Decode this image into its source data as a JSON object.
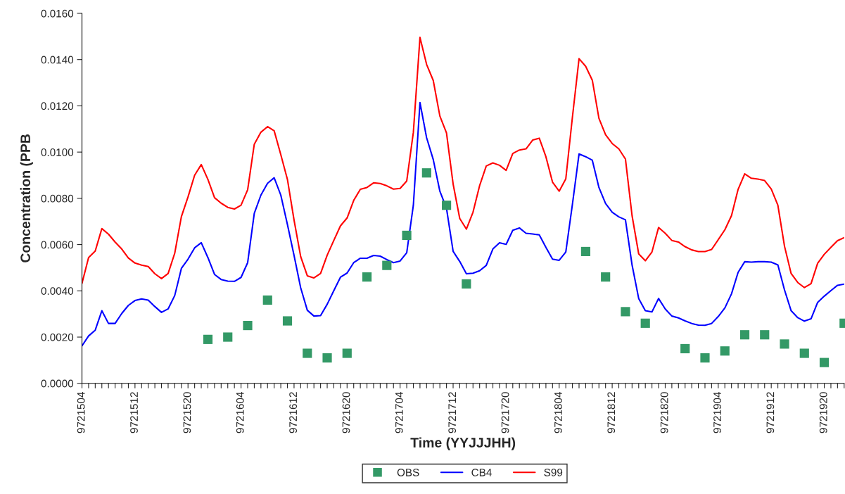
{
  "chart_data": {
    "type": "line",
    "xlabel": "Time (YYJJJHH)",
    "ylabel": "Concentration (PPB",
    "legend": "bottom",
    "grid": false,
    "categories": [
      "9721504",
      null,
      null,
      null,
      null,
      null,
      null,
      null,
      "9721512",
      null,
      null,
      null,
      null,
      null,
      null,
      null,
      "9721520",
      null,
      null,
      null,
      null,
      null,
      null,
      null,
      "9721604",
      null,
      null,
      null,
      null,
      null,
      null,
      null,
      "9721612",
      null,
      null,
      null,
      null,
      null,
      null,
      null,
      "9721620",
      null,
      null,
      null,
      null,
      null,
      null,
      null,
      "9721704",
      null,
      null,
      null,
      null,
      null,
      null,
      null,
      "9721712",
      null,
      null,
      null,
      null,
      null,
      null,
      null,
      "9721720",
      null,
      null,
      null,
      null,
      null,
      null,
      null,
      "9721804",
      null,
      null,
      null,
      null,
      null,
      null,
      null,
      "9721812",
      null,
      null,
      null,
      null,
      null,
      null,
      null,
      "9721820",
      null,
      null,
      null,
      null,
      null,
      null,
      null,
      "9721904",
      null,
      null,
      null,
      null,
      null,
      null,
      null,
      "9721912",
      null,
      null,
      null,
      null,
      null,
      null,
      null,
      "9721920",
      null,
      null,
      null
    ],
    "ylim": [
      0,
      0.016
    ],
    "yticks": [
      {
        "value": 0,
        "label": "0.0000"
      },
      {
        "value": 0.002,
        "label": "0.0020"
      },
      {
        "value": 0.004,
        "label": "0.0040"
      },
      {
        "value": 0.006,
        "label": "0.0060"
      },
      {
        "value": 0.008,
        "label": "0.0080"
      },
      {
        "value": 0.01,
        "label": "0.0100"
      },
      {
        "value": 0.012,
        "label": "0.0120"
      },
      {
        "value": 0.014,
        "label": "0.0140"
      },
      {
        "value": 0.016,
        "label": "0.0160"
      }
    ],
    "series": [
      {
        "name": "OBS",
        "type": "scatter",
        "marker": "square",
        "color": "#339966",
        "values": [
          null,
          null,
          null,
          null,
          null,
          null,
          null,
          null,
          null,
          null,
          null,
          null,
          null,
          null,
          null,
          null,
          null,
          null,
          null,
          0.0019,
          null,
          null,
          0.002,
          null,
          null,
          0.0025,
          null,
          null,
          0.0036,
          null,
          null,
          0.0027,
          null,
          null,
          0.0013,
          null,
          null,
          0.0011,
          null,
          null,
          0.0013,
          null,
          null,
          0.0046,
          null,
          null,
          0.0051,
          null,
          null,
          0.0064,
          null,
          null,
          0.0091,
          null,
          null,
          0.0077,
          null,
          null,
          0.0043,
          null,
          null,
          null,
          null,
          null,
          null,
          null,
          null,
          null,
          null,
          null,
          null,
          null,
          null,
          null,
          null,
          null,
          0.0057,
          null,
          null,
          0.0046,
          null,
          null,
          0.0031,
          null,
          null,
          0.0026,
          null,
          null,
          null,
          null,
          null,
          0.0015,
          null,
          null,
          0.0011,
          null,
          null,
          0.0014,
          null,
          null,
          0.0021,
          null,
          null,
          0.0021,
          null,
          null,
          0.0017,
          null,
          null,
          0.0013,
          null,
          null,
          0.0009,
          null,
          null,
          0.0026
        ]
      },
      {
        "name": "CB4",
        "color": "#0000ff",
        "values": [
          0.00162,
          0.00205,
          0.0023,
          0.00314,
          0.00259,
          0.00259,
          0.00302,
          0.00337,
          0.00358,
          0.00365,
          0.0036,
          0.00332,
          0.00307,
          0.00322,
          0.0038,
          0.00497,
          0.00537,
          0.00586,
          0.00608,
          0.00544,
          0.00471,
          0.00449,
          0.00442,
          0.00441,
          0.00458,
          0.00522,
          0.00735,
          0.00814,
          0.00865,
          0.00889,
          0.00814,
          0.00687,
          0.00553,
          0.00413,
          0.00316,
          0.00291,
          0.00293,
          0.00342,
          0.00401,
          0.00459,
          0.00477,
          0.00522,
          0.00541,
          0.00541,
          0.00553,
          0.0055,
          0.00535,
          0.00522,
          0.00529,
          0.00565,
          0.0077,
          0.01214,
          0.01062,
          0.00968,
          0.00831,
          0.00757,
          0.00571,
          0.00527,
          0.00474,
          0.00476,
          0.00487,
          0.0051,
          0.00581,
          0.00608,
          0.00601,
          0.00662,
          0.00672,
          0.00649,
          0.00646,
          0.00642,
          0.00588,
          0.00537,
          0.00532,
          0.00568,
          0.00774,
          0.00992,
          0.0098,
          0.00965,
          0.00847,
          0.00778,
          0.0074,
          0.0072,
          0.00707,
          0.00512,
          0.00367,
          0.00314,
          0.00309,
          0.00367,
          0.00322,
          0.00291,
          0.00283,
          0.0027,
          0.00259,
          0.00252,
          0.00251,
          0.00259,
          0.00289,
          0.00326,
          0.00387,
          0.0048,
          0.00526,
          0.00524,
          0.00526,
          0.00526,
          0.00524,
          0.00512,
          0.00404,
          0.00314,
          0.00284,
          0.00269,
          0.00279,
          0.0035,
          0.00377,
          0.00401,
          0.00424,
          0.00429
        ]
      },
      {
        "name": "S99",
        "color": "#ff0000",
        "values": [
          0.00432,
          0.00544,
          0.00572,
          0.00669,
          0.00645,
          0.00611,
          0.00581,
          0.00542,
          0.0052,
          0.00511,
          0.00505,
          0.00474,
          0.00453,
          0.00475,
          0.00563,
          0.00721,
          0.00806,
          0.009,
          0.00946,
          0.00882,
          0.00803,
          0.00779,
          0.00761,
          0.00754,
          0.0077,
          0.00837,
          0.01034,
          0.01086,
          0.0111,
          0.01092,
          0.00989,
          0.00882,
          0.00706,
          0.00548,
          0.00465,
          0.00456,
          0.00475,
          0.00554,
          0.00618,
          0.00681,
          0.00715,
          0.00791,
          0.00839,
          0.00847,
          0.00867,
          0.00864,
          0.00854,
          0.0084,
          0.00843,
          0.00875,
          0.01085,
          0.01496,
          0.01379,
          0.0131,
          0.01156,
          0.01083,
          0.00862,
          0.00713,
          0.00667,
          0.0074,
          0.00855,
          0.0094,
          0.00953,
          0.00943,
          0.00921,
          0.00994,
          0.01009,
          0.01014,
          0.01052,
          0.0106,
          0.0098,
          0.0087,
          0.00831,
          0.00884,
          0.01151,
          0.01404,
          0.01371,
          0.01311,
          0.01146,
          0.01075,
          0.01037,
          0.01014,
          0.0097,
          0.00725,
          0.0056,
          0.0053,
          0.00568,
          0.00674,
          0.00649,
          0.00618,
          0.00611,
          0.00591,
          0.00577,
          0.0057,
          0.0057,
          0.00579,
          0.00621,
          0.00664,
          0.00725,
          0.00839,
          0.00906,
          0.00887,
          0.00883,
          0.00877,
          0.0084,
          0.0077,
          0.00593,
          0.00475,
          0.00436,
          0.00414,
          0.00431,
          0.00519,
          0.00558,
          0.00588,
          0.00617,
          0.0063
        ]
      }
    ]
  }
}
